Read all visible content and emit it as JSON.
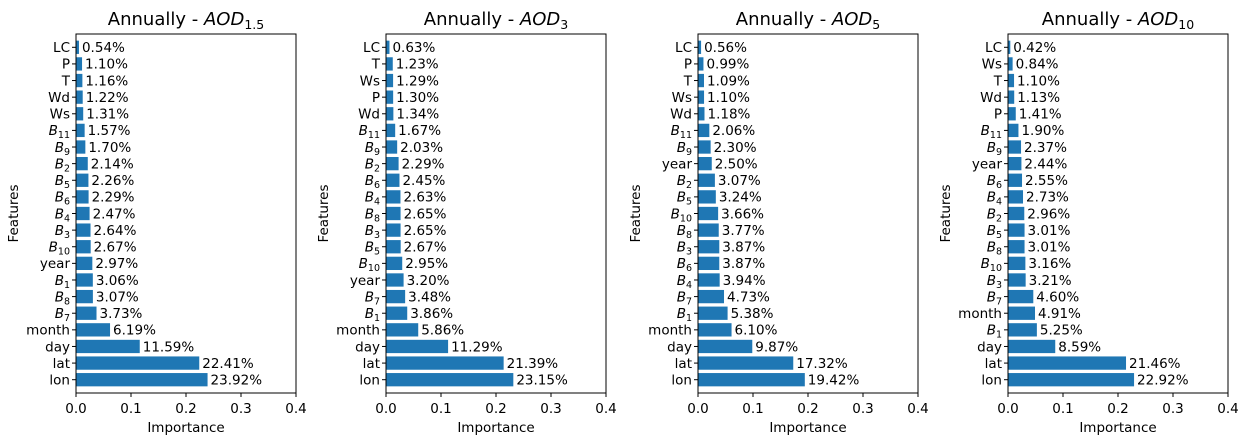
{
  "chart_data": [
    {
      "type": "bar",
      "orientation": "horizontal",
      "title_prefix": "Annually -  ",
      "title_var": "AOD",
      "title_sub": "1.5",
      "xlabel": "Importance",
      "ylabel": "Features",
      "xlim": [
        0,
        0.4
      ],
      "xticks": [
        "0.0",
        "0.1",
        "0.2",
        "0.3",
        "0.4"
      ],
      "grid": false,
      "bar_color": "#1f77b4",
      "categories": [
        {
          "base": "LC",
          "sub": ""
        },
        {
          "base": "P",
          "sub": ""
        },
        {
          "base": "T",
          "sub": ""
        },
        {
          "base": "Wd",
          "sub": ""
        },
        {
          "base": "Ws",
          "sub": ""
        },
        {
          "base": "B",
          "sub": "11"
        },
        {
          "base": "B",
          "sub": "9"
        },
        {
          "base": "B",
          "sub": "2"
        },
        {
          "base": "B",
          "sub": "5"
        },
        {
          "base": "B",
          "sub": "6"
        },
        {
          "base": "B",
          "sub": "4"
        },
        {
          "base": "B",
          "sub": "3"
        },
        {
          "base": "B",
          "sub": "10"
        },
        {
          "base": "year",
          "sub": ""
        },
        {
          "base": "B",
          "sub": "1"
        },
        {
          "base": "B",
          "sub": "8"
        },
        {
          "base": "B",
          "sub": "7"
        },
        {
          "base": "month",
          "sub": ""
        },
        {
          "base": "day",
          "sub": ""
        },
        {
          "base": "lat",
          "sub": ""
        },
        {
          "base": "lon",
          "sub": ""
        }
      ],
      "values": [
        0.0054,
        0.011,
        0.0116,
        0.0122,
        0.0131,
        0.0157,
        0.017,
        0.0214,
        0.0226,
        0.0229,
        0.0247,
        0.0264,
        0.0267,
        0.0297,
        0.0306,
        0.0307,
        0.0373,
        0.0619,
        0.1159,
        0.2241,
        0.2392
      ],
      "labels": [
        "0.54%",
        "1.10%",
        "1.16%",
        "1.22%",
        "1.31%",
        "1.57%",
        "1.70%",
        "2.14%",
        "2.26%",
        "2.29%",
        "2.47%",
        "2.64%",
        "2.67%",
        "2.97%",
        "3.06%",
        "3.07%",
        "3.73%",
        "6.19%",
        "11.59%",
        "22.41%",
        "23.92%"
      ]
    },
    {
      "type": "bar",
      "orientation": "horizontal",
      "title_prefix": "Annually -  ",
      "title_var": "AOD",
      "title_sub": "3",
      "xlabel": "Importance",
      "ylabel": "Features",
      "xlim": [
        0,
        0.4
      ],
      "xticks": [
        "0.0",
        "0.1",
        "0.2",
        "0.3",
        "0.4"
      ],
      "grid": false,
      "bar_color": "#1f77b4",
      "categories": [
        {
          "base": "LC",
          "sub": ""
        },
        {
          "base": "T",
          "sub": ""
        },
        {
          "base": "Ws",
          "sub": ""
        },
        {
          "base": "P",
          "sub": ""
        },
        {
          "base": "Wd",
          "sub": ""
        },
        {
          "base": "B",
          "sub": "11"
        },
        {
          "base": "B",
          "sub": "9"
        },
        {
          "base": "B",
          "sub": "2"
        },
        {
          "base": "B",
          "sub": "6"
        },
        {
          "base": "B",
          "sub": "4"
        },
        {
          "base": "B",
          "sub": "8"
        },
        {
          "base": "B",
          "sub": "3"
        },
        {
          "base": "B",
          "sub": "5"
        },
        {
          "base": "B",
          "sub": "10"
        },
        {
          "base": "year",
          "sub": ""
        },
        {
          "base": "B",
          "sub": "7"
        },
        {
          "base": "B",
          "sub": "1"
        },
        {
          "base": "month",
          "sub": ""
        },
        {
          "base": "day",
          "sub": ""
        },
        {
          "base": "lat",
          "sub": ""
        },
        {
          "base": "lon",
          "sub": ""
        }
      ],
      "values": [
        0.0063,
        0.0123,
        0.0129,
        0.013,
        0.0134,
        0.0167,
        0.0203,
        0.0229,
        0.0245,
        0.0263,
        0.0265,
        0.0265,
        0.0267,
        0.0295,
        0.032,
        0.0348,
        0.0386,
        0.0586,
        0.1129,
        0.2139,
        0.2315
      ],
      "labels": [
        "0.63%",
        "1.23%",
        "1.29%",
        "1.30%",
        "1.34%",
        "1.67%",
        "2.03%",
        "2.29%",
        "2.45%",
        "2.63%",
        "2.65%",
        "2.65%",
        "2.67%",
        "2.95%",
        "3.20%",
        "3.48%",
        "3.86%",
        "5.86%",
        "11.29%",
        "21.39%",
        "23.15%"
      ]
    },
    {
      "type": "bar",
      "orientation": "horizontal",
      "title_prefix": "Annually -  ",
      "title_var": "AOD",
      "title_sub": "5",
      "xlabel": "Importance",
      "ylabel": "Features",
      "xlim": [
        0,
        0.4
      ],
      "xticks": [
        "0.0",
        "0.1",
        "0.2",
        "0.3",
        "0.4"
      ],
      "grid": false,
      "bar_color": "#1f77b4",
      "categories": [
        {
          "base": "LC",
          "sub": ""
        },
        {
          "base": "P",
          "sub": ""
        },
        {
          "base": "T",
          "sub": ""
        },
        {
          "base": "Ws",
          "sub": ""
        },
        {
          "base": "Wd",
          "sub": ""
        },
        {
          "base": "B",
          "sub": "11"
        },
        {
          "base": "B",
          "sub": "9"
        },
        {
          "base": "year",
          "sub": ""
        },
        {
          "base": "B",
          "sub": "2"
        },
        {
          "base": "B",
          "sub": "5"
        },
        {
          "base": "B",
          "sub": "10"
        },
        {
          "base": "B",
          "sub": "8"
        },
        {
          "base": "B",
          "sub": "3"
        },
        {
          "base": "B",
          "sub": "6"
        },
        {
          "base": "B",
          "sub": "4"
        },
        {
          "base": "B",
          "sub": "7"
        },
        {
          "base": "B",
          "sub": "1"
        },
        {
          "base": "month",
          "sub": ""
        },
        {
          "base": "day",
          "sub": ""
        },
        {
          "base": "lat",
          "sub": ""
        },
        {
          "base": "lon",
          "sub": ""
        }
      ],
      "values": [
        0.0056,
        0.0099,
        0.0109,
        0.011,
        0.0118,
        0.0206,
        0.023,
        0.025,
        0.0307,
        0.0324,
        0.0366,
        0.0377,
        0.0387,
        0.0387,
        0.0394,
        0.0473,
        0.0538,
        0.061,
        0.0987,
        0.1732,
        0.1942
      ],
      "labels": [
        "0.56%",
        "0.99%",
        "1.09%",
        "1.10%",
        "1.18%",
        "2.06%",
        "2.30%",
        "2.50%",
        "3.07%",
        "3.24%",
        "3.66%",
        "3.77%",
        "3.87%",
        "3.87%",
        "3.94%",
        "4.73%",
        "5.38%",
        "6.10%",
        "9.87%",
        "17.32%",
        "19.42%"
      ]
    },
    {
      "type": "bar",
      "orientation": "horizontal",
      "title_prefix": "Annually -  ",
      "title_var": "AOD",
      "title_sub": "10",
      "xlabel": "Importance",
      "ylabel": "Features",
      "xlim": [
        0,
        0.4
      ],
      "xticks": [
        "0.0",
        "0.1",
        "0.2",
        "0.3",
        "0.4"
      ],
      "grid": false,
      "bar_color": "#1f77b4",
      "categories": [
        {
          "base": "LC",
          "sub": ""
        },
        {
          "base": "Ws",
          "sub": ""
        },
        {
          "base": "T",
          "sub": ""
        },
        {
          "base": "Wd",
          "sub": ""
        },
        {
          "base": "P",
          "sub": ""
        },
        {
          "base": "B",
          "sub": "11"
        },
        {
          "base": "B",
          "sub": "9"
        },
        {
          "base": "year",
          "sub": ""
        },
        {
          "base": "B",
          "sub": "6"
        },
        {
          "base": "B",
          "sub": "4"
        },
        {
          "base": "B",
          "sub": "2"
        },
        {
          "base": "B",
          "sub": "5"
        },
        {
          "base": "B",
          "sub": "8"
        },
        {
          "base": "B",
          "sub": "10"
        },
        {
          "base": "B",
          "sub": "3"
        },
        {
          "base": "B",
          "sub": "7"
        },
        {
          "base": "month",
          "sub": ""
        },
        {
          "base": "B",
          "sub": "1"
        },
        {
          "base": "day",
          "sub": ""
        },
        {
          "base": "lat",
          "sub": ""
        },
        {
          "base": "lon",
          "sub": ""
        }
      ],
      "values": [
        0.0042,
        0.0084,
        0.011,
        0.0113,
        0.0141,
        0.019,
        0.0237,
        0.0244,
        0.0255,
        0.0273,
        0.0296,
        0.0301,
        0.0301,
        0.0316,
        0.0321,
        0.046,
        0.0491,
        0.0525,
        0.0859,
        0.2146,
        0.2292
      ],
      "labels": [
        "0.42%",
        "0.84%",
        "1.10%",
        "1.13%",
        "1.41%",
        "1.90%",
        "2.37%",
        "2.44%",
        "2.55%",
        "2.73%",
        "2.96%",
        "3.01%",
        "3.01%",
        "3.16%",
        "3.21%",
        "4.60%",
        "4.91%",
        "5.25%",
        "8.59%",
        "21.46%",
        "22.92%"
      ]
    }
  ]
}
